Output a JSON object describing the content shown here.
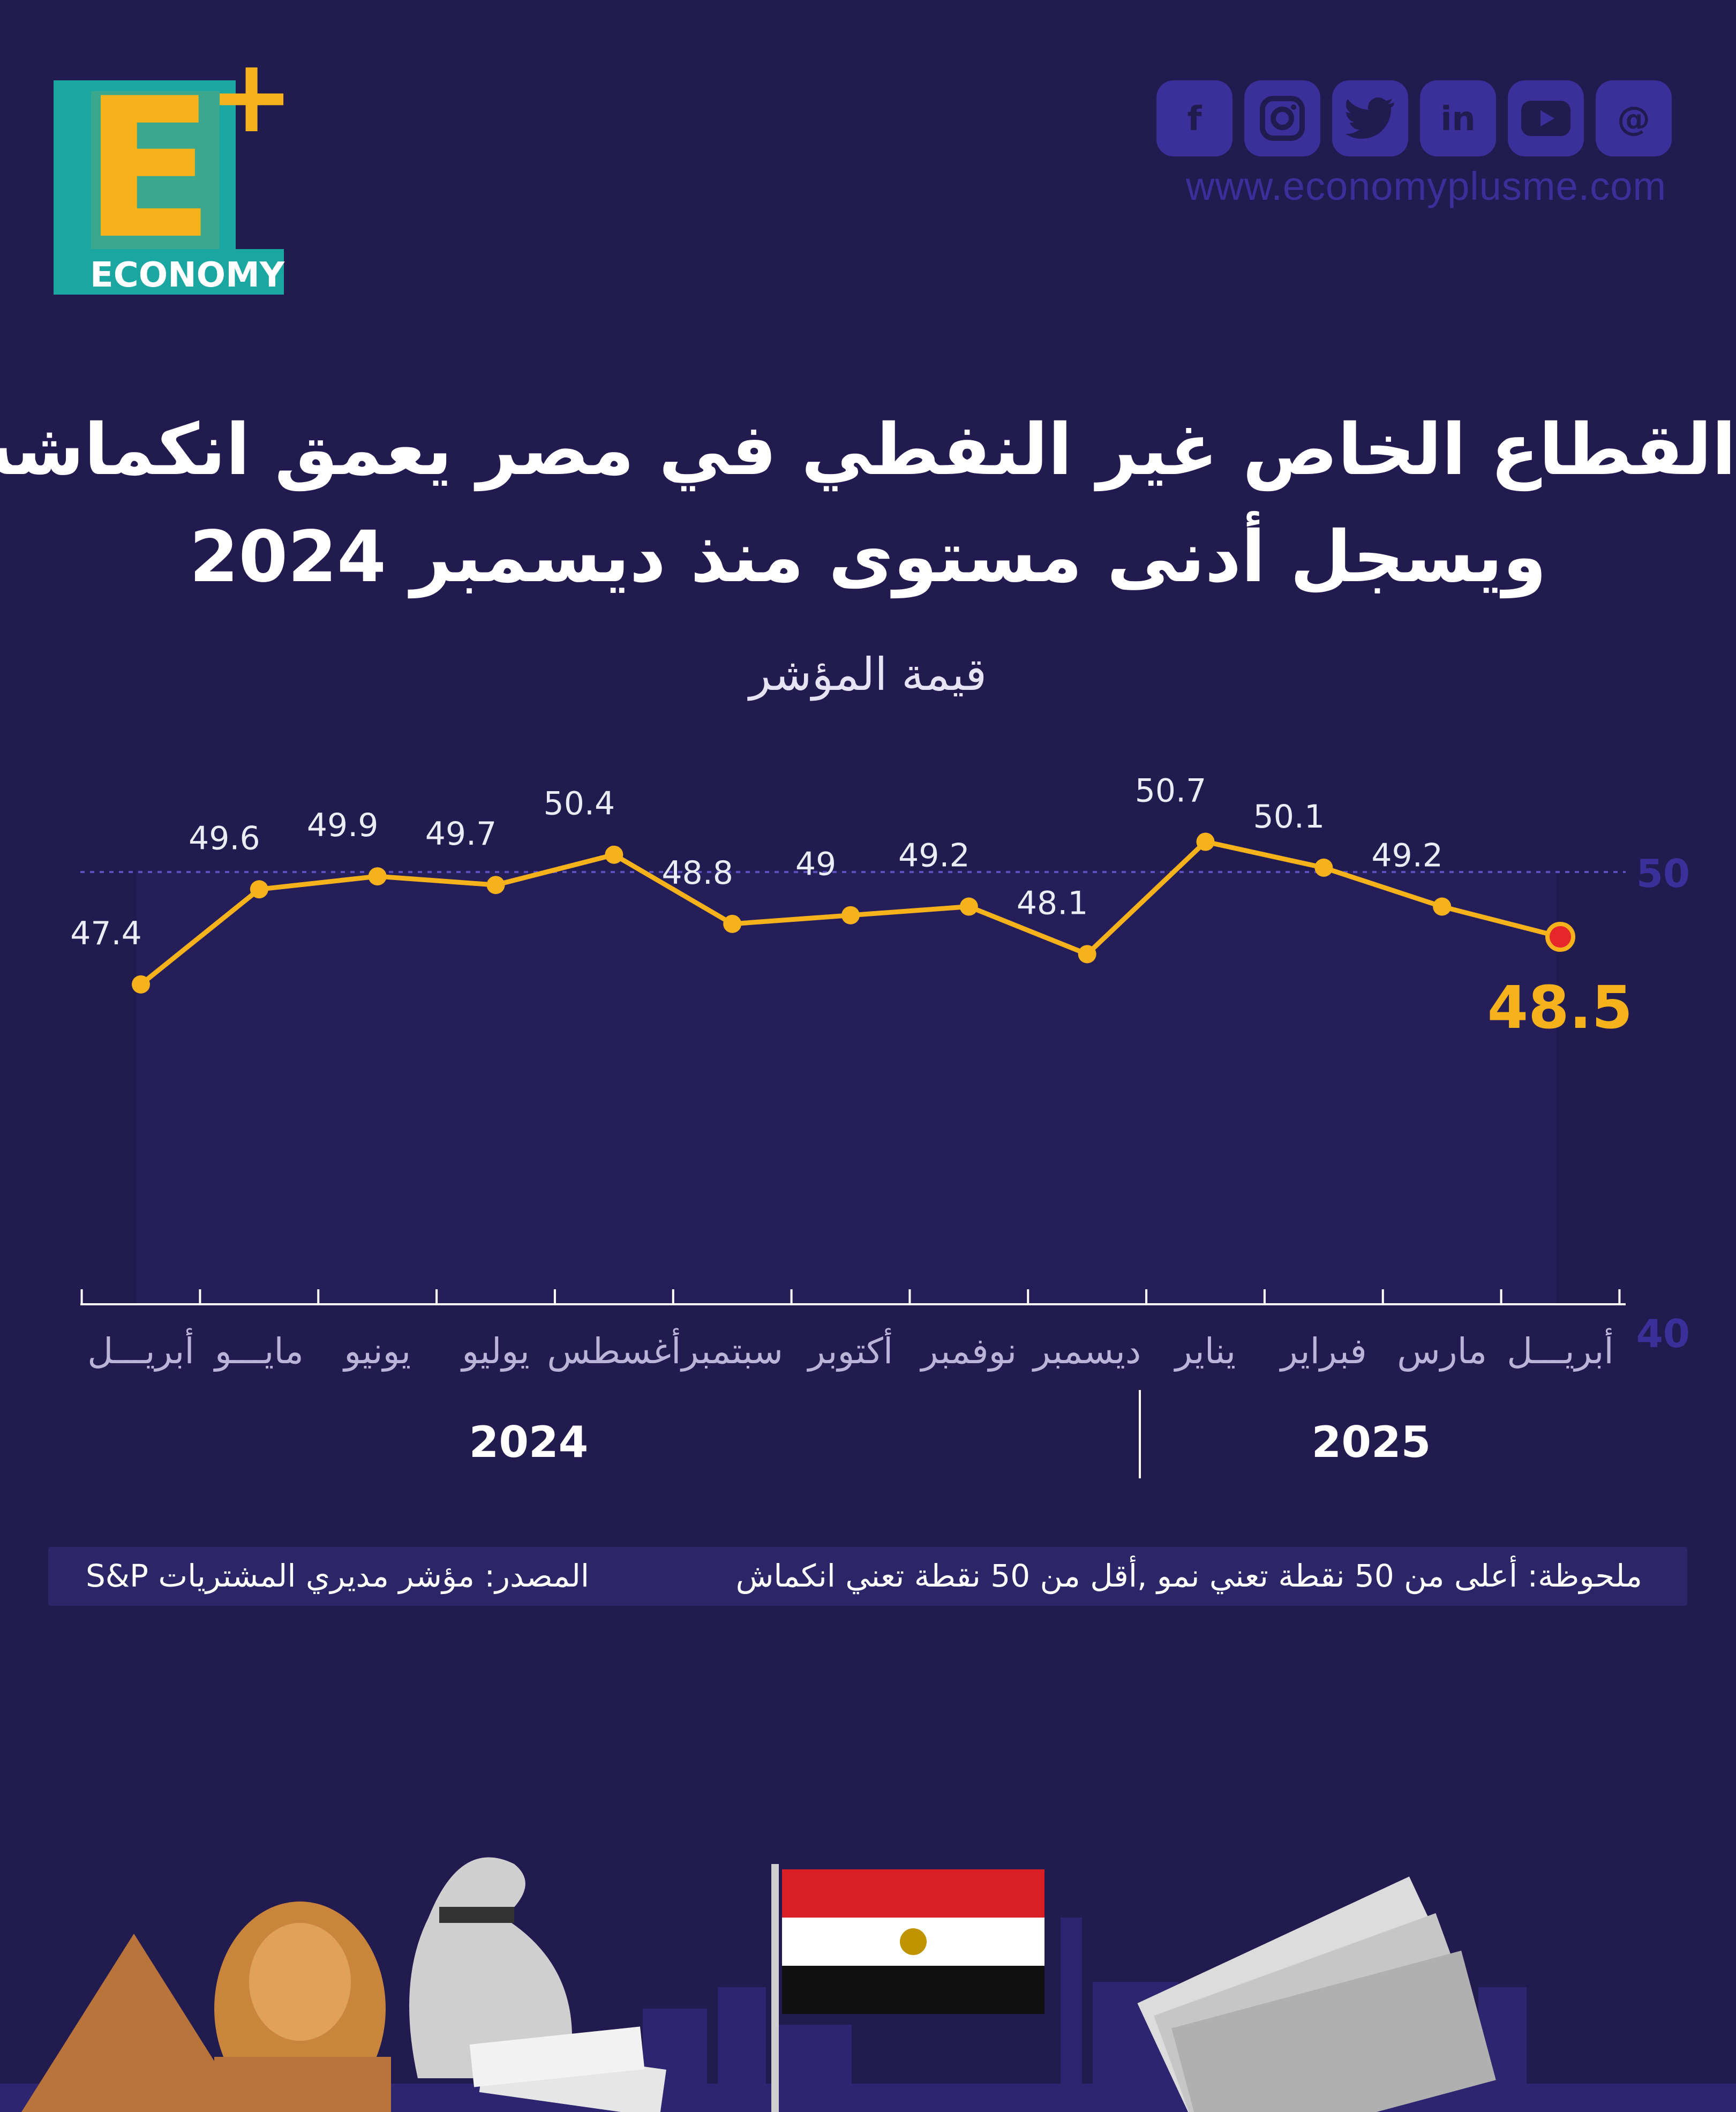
{
  "brand": {
    "logo_letter": "E",
    "logo_plus": "+",
    "logo_text": "ECONOMY",
    "website": "www.economyplusme.com",
    "social_icons": [
      "facebook-icon",
      "instagram-icon",
      "twitter-icon",
      "linkedin-icon",
      "youtube-icon",
      "threads-icon"
    ],
    "colors": {
      "yellow": "#f5b21a",
      "teal": "#1aa6a1",
      "background": "#221b4f",
      "accent_purple": "#3b2f9a"
    }
  },
  "title": {
    "line1": "القطاع الخاص غير النفطي في مصر يعمق انكماشه",
    "line2": "ويسجل أدنى مستوى منذ ديسمبر 2024"
  },
  "chart_data": {
    "type": "line",
    "ylabel": "قيمة المؤشر",
    "ylim": [
      40,
      50
    ],
    "yticks": [
      "50",
      "40"
    ],
    "categories": [
      "أبريـــل",
      "مايـــو",
      "يونيو",
      "يوليو",
      "أغسطس",
      "سبتمبر",
      "أكتوبر",
      "نوفمبر",
      "ديسمبر",
      "يناير",
      "فبراير",
      "مارس",
      "أبريـــل"
    ],
    "years": [
      "2024",
      "2025"
    ],
    "series": [
      {
        "values": [
          47.4,
          49.6,
          49.9,
          49.7,
          50.4,
          48.8,
          49,
          49.2,
          48.1,
          50.7,
          50.1,
          49.2,
          48.5
        ],
        "labels": [
          "47.4",
          "49.6",
          "49.9",
          "49.7",
          "50.4",
          "48.8",
          "49",
          "49.2",
          "48.1",
          "50.7",
          "50.1",
          "49.2",
          "48.5"
        ]
      }
    ],
    "reference_line": 50,
    "colors": {
      "line": "#f5b21a",
      "last_point": "#e5262b"
    }
  },
  "footer": {
    "note": "ملحوظة: أعلى من 50 نقطة تعني نمو ,أقل من 50 نقطة تعني انكماش",
    "source": "المصدر: مؤشر مديري المشتريات S&P"
  }
}
